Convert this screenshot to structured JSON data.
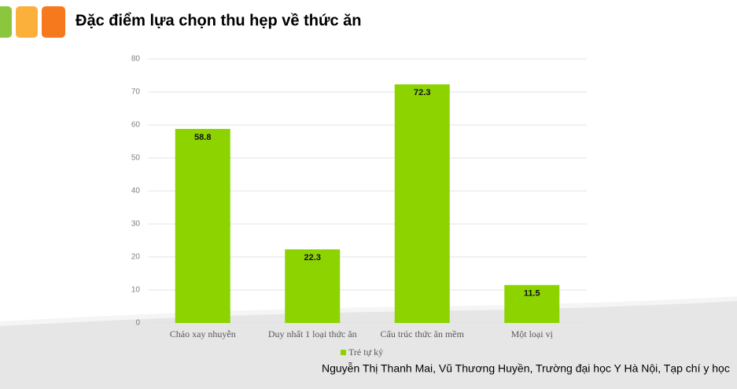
{
  "chart_data": {
    "type": "bar",
    "title": "Đặc điểm lựa chọn thu hẹp về thức ăn",
    "categories": [
      "Cháo xay nhuyễn",
      "Duy nhất 1 loại thức ăn",
      "Cấu trúc thức ăn mềm",
      "Một loại vị"
    ],
    "series": [
      {
        "name": "Trẻ tự kỷ",
        "color": "#8cd300",
        "values": [
          58.8,
          22.3,
          72.3,
          11.5
        ]
      }
    ],
    "ylim": [
      0,
      80
    ],
    "yticks": [
      0,
      10,
      20,
      30,
      40,
      50,
      60,
      70,
      80
    ],
    "grid": true,
    "source": "Nguyễn Thị Thanh Mai, Vũ Thương Huyền, Trường đại học Y Hà Nội, Tạp chí y học"
  }
}
